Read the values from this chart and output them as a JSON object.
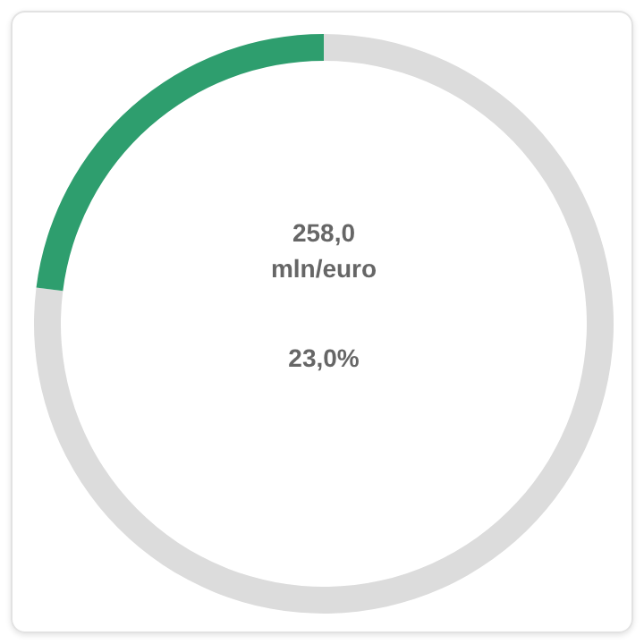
{
  "chart_data": {
    "type": "donut",
    "categories": [
      null,
      null
    ],
    "values": [
      77,
      23
    ],
    "colors": [
      "#dcdcdc",
      "#2e9e6e"
    ],
    "annotations": [
      "258,0",
      "mln/euro",
      "23,0%"
    ]
  }
}
